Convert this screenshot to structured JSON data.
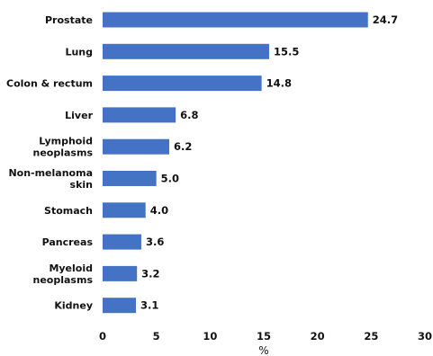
{
  "chart_data": {
    "type": "bar",
    "orientation": "horizontal",
    "categories": [
      [
        "Prostate"
      ],
      [
        "Lung"
      ],
      [
        "Colon & rectum"
      ],
      [
        "Liver"
      ],
      [
        "Lymphoid",
        "neoplasms"
      ],
      [
        "Non-melanoma",
        "skin"
      ],
      [
        "Stomach"
      ],
      [
        "Pancreas"
      ],
      [
        "Myeloid",
        "neoplasms"
      ],
      [
        "Kidney"
      ]
    ],
    "values": [
      24.7,
      15.5,
      14.8,
      6.8,
      6.2,
      5.0,
      4.0,
      3.6,
      3.2,
      3.1
    ],
    "value_labels": [
      "24.7",
      "15.5",
      "14.8",
      "6.8",
      "6.2",
      "5.0",
      "4.0",
      "3.6",
      "3.2",
      "3.1"
    ],
    "xlim": [
      0,
      30
    ],
    "xticks": [
      0,
      5,
      10,
      15,
      20,
      25,
      30
    ],
    "xlabel": "%",
    "grid": false,
    "bar_color": "#4472C4",
    "text_color": "#111111"
  }
}
